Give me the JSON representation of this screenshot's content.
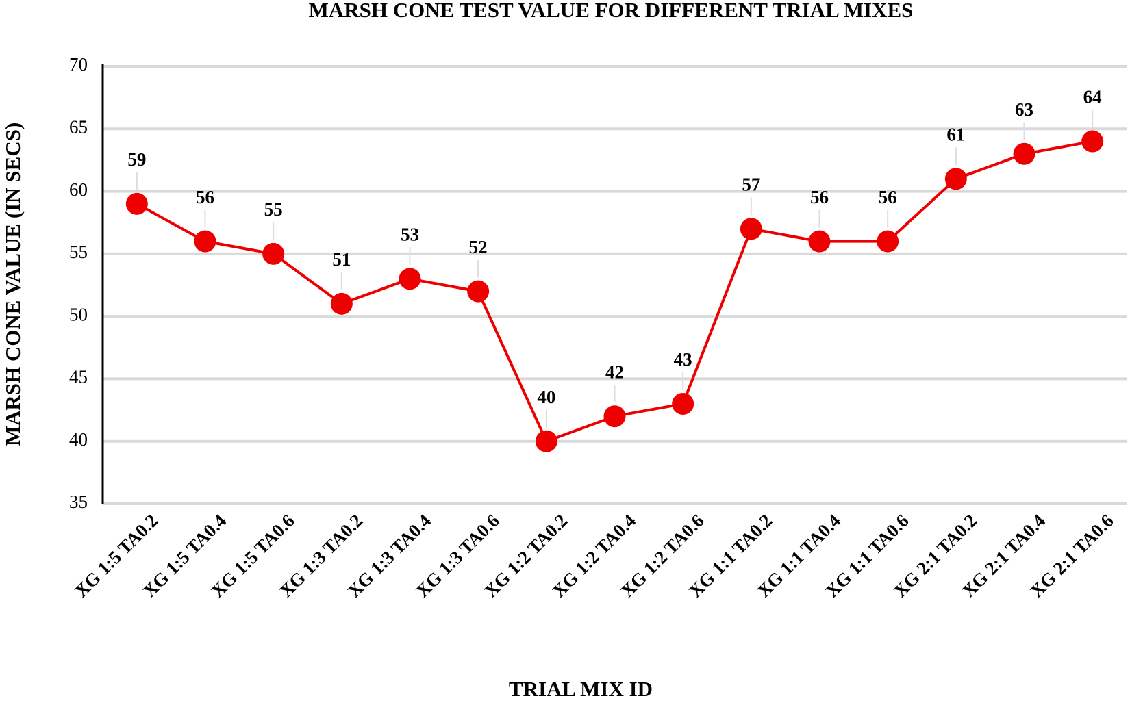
{
  "chart_data": {
    "type": "line",
    "title": "MARSH CONE TEST VALUE FOR DIFFERENT TRIAL MIXES",
    "x_label": "TRIAL MIX ID",
    "y_label": "MARSH CONE VALUE (IN SECS)",
    "categories": [
      "XG 1:5 TA0.2",
      "XG 1:5 TA0.4",
      "XG 1:5 TA0.6",
      "XG 1:3 TA0.2",
      "XG 1:3 TA0.4",
      "XG 1:3 TA0.6",
      "XG 1:2 TA0.2",
      "XG 1:2 TA0.4",
      "XG 1:2 TA0.6",
      "XG 1:1 TA0.2",
      "XG 1:1 TA0.4",
      "XG 1:1 TA0.6",
      "XG 2:1 TA0.2",
      "XG 2:1 TA0.4",
      "XG 2:1 TA0.6"
    ],
    "values": [
      59,
      56,
      55,
      51,
      53,
      52,
      40,
      42,
      43,
      57,
      56,
      56,
      61,
      63,
      64
    ],
    "color": "#ee0000",
    "ylim": [
      35,
      70
    ],
    "yticks": [
      35,
      40,
      45,
      50,
      55,
      60,
      65,
      70
    ],
    "grid": true
  }
}
